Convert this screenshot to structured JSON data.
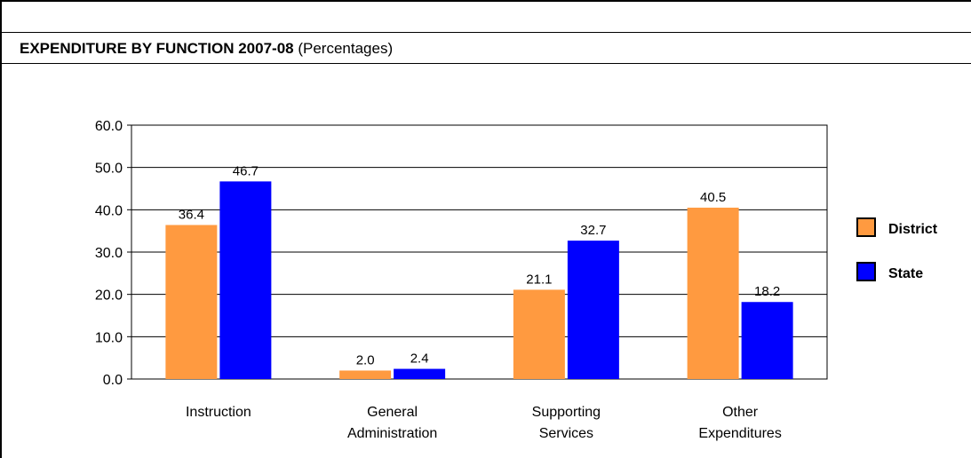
{
  "header": {
    "title_bold": "EXPENDITURE BY FUNCTION 2007-08",
    "title_rest": "(Percentages)"
  },
  "chart_data": {
    "type": "bar",
    "title": "EXPENDITURE BY FUNCTION 2007-08 (Percentages)",
    "categories": [
      [
        "Instruction"
      ],
      [
        "General",
        "Administration"
      ],
      [
        "Supporting",
        "Services"
      ],
      [
        "Other",
        "Expenditures"
      ]
    ],
    "series": [
      {
        "name": "District",
        "color": "#FF9A40",
        "values": [
          36.4,
          2.0,
          21.1,
          40.5
        ]
      },
      {
        "name": "State",
        "color": "#0000FF",
        "values": [
          46.7,
          2.4,
          32.7,
          18.2
        ]
      }
    ],
    "ylim": [
      0,
      60
    ],
    "yticks": [
      "0.0",
      "10.0",
      "20.0",
      "30.0",
      "40.0",
      "50.0",
      "60.0"
    ],
    "ytick_values": [
      0,
      10,
      20,
      30,
      40,
      50,
      60
    ],
    "grid": true,
    "legend": "right",
    "data_labels": true
  }
}
